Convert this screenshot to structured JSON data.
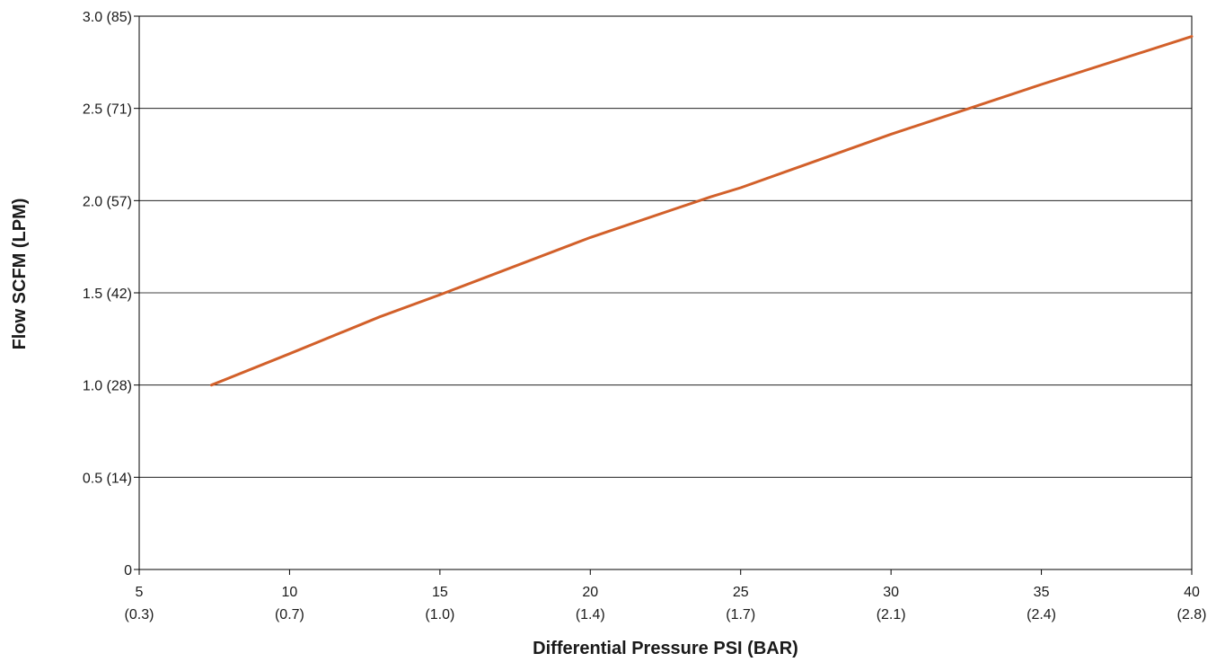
{
  "chart_data": {
    "type": "line",
    "xlabel": "Differential Pressure PSI (BAR)",
    "ylabel": "Flow SCFM (LPM)",
    "xlim": [
      5,
      40
    ],
    "ylim": [
      0,
      3.0
    ],
    "grid": true,
    "x_ticks": [
      {
        "value": 5,
        "label": "5",
        "sublabel": "(0.3)"
      },
      {
        "value": 10,
        "label": "10",
        "sublabel": "(0.7)"
      },
      {
        "value": 15,
        "label": "15",
        "sublabel": "(1.0)"
      },
      {
        "value": 20,
        "label": "20",
        "sublabel": "(1.4)"
      },
      {
        "value": 25,
        "label": "25",
        "sublabel": "(1.7)"
      },
      {
        "value": 30,
        "label": "30",
        "sublabel": "(2.1)"
      },
      {
        "value": 35,
        "label": "35",
        "sublabel": "(2.4)"
      },
      {
        "value": 40,
        "label": "40",
        "sublabel": "(2.8)"
      }
    ],
    "y_ticks": [
      {
        "value": 0,
        "label": "0"
      },
      {
        "value": 0.5,
        "label": "0.5 (14)"
      },
      {
        "value": 1.0,
        "label": "1.0 (28)"
      },
      {
        "value": 1.5,
        "label": "1.5 (42)"
      },
      {
        "value": 2.0,
        "label": "2.0 (57)"
      },
      {
        "value": 2.5,
        "label": "2.5 (71)"
      },
      {
        "value": 3.0,
        "label": "3.0 (85)"
      }
    ],
    "series": [
      {
        "color": "#d2602a",
        "x": [
          7.4,
          10,
          13,
          15,
          20,
          24,
          25,
          30,
          32.6,
          35,
          40
        ],
        "y": [
          1.0,
          1.17,
          1.37,
          1.49,
          1.8,
          2.02,
          2.07,
          2.36,
          2.5,
          2.63,
          2.89
        ]
      }
    ]
  }
}
